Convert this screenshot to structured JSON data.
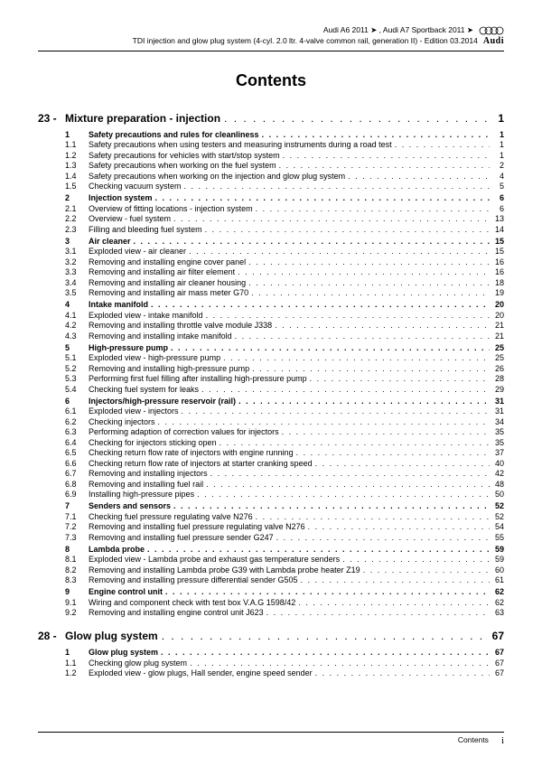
{
  "header": {
    "line1a": "Audi A6 2011 ➤ , Audi A7 Sportback 2011 ➤",
    "line2": "TDI injection and glow plug system (4-cyl. 2.0 ltr. 4-valve common rail, generation II) - Edition 03.2014",
    "brand": "Audi"
  },
  "title": "Contents",
  "chapters": [
    {
      "num": "23 -",
      "title": "Mixture preparation - injection",
      "page": "1",
      "sections": [
        {
          "num": "1",
          "title": "Safety precautions and rules for cleanliness",
          "page": "1",
          "bold": true
        },
        {
          "num": "1.1",
          "title": "Safety precautions when using testers and measuring instruments during a road test",
          "page": "1"
        },
        {
          "num": "1.2",
          "title": "Safety precautions for vehicles with start/stop system",
          "page": "1"
        },
        {
          "num": "1.3",
          "title": "Safety precautions when working on the fuel system",
          "page": "2"
        },
        {
          "num": "1.4",
          "title": "Safety precautions when working on the injection and glow plug system",
          "page": "4"
        },
        {
          "num": "1.5",
          "title": "Checking vacuum system",
          "page": "5"
        },
        {
          "num": "2",
          "title": "Injection system",
          "page": "6",
          "bold": true
        },
        {
          "num": "2.1",
          "title": "Overview of fitting locations - injection system",
          "page": "6"
        },
        {
          "num": "2.2",
          "title": "Overview - fuel system",
          "page": "13"
        },
        {
          "num": "2.3",
          "title": "Filling and bleeding fuel system",
          "page": "14"
        },
        {
          "num": "3",
          "title": "Air cleaner",
          "page": "15",
          "bold": true
        },
        {
          "num": "3.1",
          "title": "Exploded view - air cleaner",
          "page": "15"
        },
        {
          "num": "3.2",
          "title": "Removing and installing engine cover panel",
          "page": "16"
        },
        {
          "num": "3.3",
          "title": "Removing and installing air filter element",
          "page": "16"
        },
        {
          "num": "3.4",
          "title": "Removing and installing air cleaner housing",
          "page": "18"
        },
        {
          "num": "3.5",
          "title": "Removing and installing air mass meter G70",
          "page": "19"
        },
        {
          "num": "4",
          "title": "Intake manifold",
          "page": "20",
          "bold": true
        },
        {
          "num": "4.1",
          "title": "Exploded view - intake manifold",
          "page": "20"
        },
        {
          "num": "4.2",
          "title": "Removing and installing throttle valve module J338",
          "page": "21"
        },
        {
          "num": "4.3",
          "title": "Removing and installing intake manifold",
          "page": "21"
        },
        {
          "num": "5",
          "title": "High-pressure pump",
          "page": "25",
          "bold": true
        },
        {
          "num": "5.1",
          "title": "Exploded view - high-pressure pump",
          "page": "25"
        },
        {
          "num": "5.2",
          "title": "Removing and installing high-pressure pump",
          "page": "26"
        },
        {
          "num": "5.3",
          "title": "Performing first fuel filling after installing high-pressure pump",
          "page": "28"
        },
        {
          "num": "5.4",
          "title": "Checking fuel system for leaks",
          "page": "29"
        },
        {
          "num": "6",
          "title": "Injectors/high-pressure reservoir (rail)",
          "page": "31",
          "bold": true
        },
        {
          "num": "6.1",
          "title": "Exploded view - injectors",
          "page": "31"
        },
        {
          "num": "6.2",
          "title": "Checking injectors",
          "page": "34"
        },
        {
          "num": "6.3",
          "title": "Performing adaption of correction values for injectors",
          "page": "35"
        },
        {
          "num": "6.4",
          "title": "Checking for injectors sticking open",
          "page": "35"
        },
        {
          "num": "6.5",
          "title": "Checking return flow rate of injectors with engine running",
          "page": "37"
        },
        {
          "num": "6.6",
          "title": "Checking return flow rate of injectors at starter cranking speed",
          "page": "40"
        },
        {
          "num": "6.7",
          "title": "Removing and installing injectors",
          "page": "42"
        },
        {
          "num": "6.8",
          "title": "Removing and installing fuel rail",
          "page": "48"
        },
        {
          "num": "6.9",
          "title": "Installing high-pressure pipes",
          "page": "50"
        },
        {
          "num": "7",
          "title": "Senders and sensors",
          "page": "52",
          "bold": true
        },
        {
          "num": "7.1",
          "title": "Checking fuel pressure regulating valve N276",
          "page": "52"
        },
        {
          "num": "7.2",
          "title": "Removing and installing fuel pressure regulating valve N276",
          "page": "54"
        },
        {
          "num": "7.3",
          "title": "Removing and installing fuel pressure sender G247",
          "page": "55"
        },
        {
          "num": "8",
          "title": "Lambda probe",
          "page": "59",
          "bold": true
        },
        {
          "num": "8.1",
          "title": "Exploded view - Lambda probe and exhaust gas temperature senders",
          "page": "59"
        },
        {
          "num": "8.2",
          "title": "Removing and installing Lambda probe G39 with Lambda probe heater Z19",
          "page": "60"
        },
        {
          "num": "8.3",
          "title": "Removing and installing pressure differential sender G505",
          "page": "61"
        },
        {
          "num": "9",
          "title": "Engine control unit",
          "page": "62",
          "bold": true
        },
        {
          "num": "9.1",
          "title": "Wiring and component check with test box V.A.G 1598/42",
          "page": "62"
        },
        {
          "num": "9.2",
          "title": "Removing and installing engine control unit J623",
          "page": "63"
        }
      ]
    },
    {
      "num": "28 -",
      "title": "Glow plug system",
      "page": "67",
      "sections": [
        {
          "num": "1",
          "title": "Glow plug system",
          "page": "67",
          "bold": true
        },
        {
          "num": "1.1",
          "title": "Checking glow plug system",
          "page": "67"
        },
        {
          "num": "1.2",
          "title": "Exploded view - glow plugs, Hall sender, engine speed sender",
          "page": "67"
        }
      ]
    }
  ],
  "footer": {
    "label": "Contents",
    "pagenum": "i"
  }
}
